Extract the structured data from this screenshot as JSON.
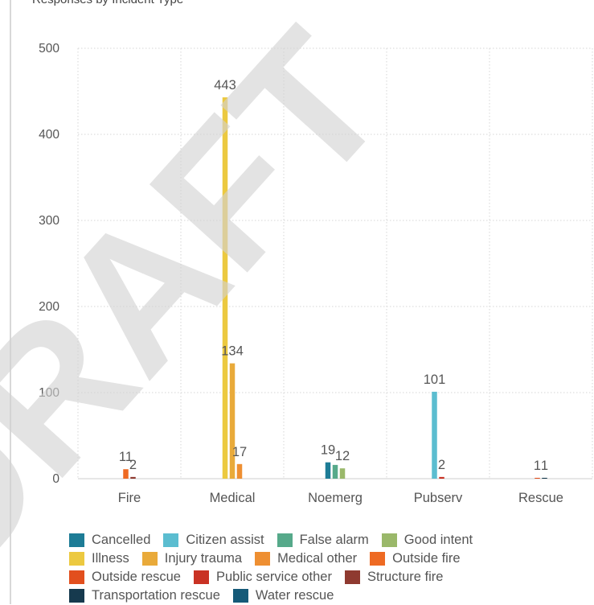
{
  "chart_data": {
    "type": "bar",
    "title": "Responses by Incident Type",
    "categories": [
      "Fire",
      "Medical",
      "Noemerg",
      "Pubserv",
      "Rescue"
    ],
    "ylim": [
      0,
      500
    ],
    "yticks": [
      0,
      100,
      200,
      300,
      400,
      500
    ],
    "grid": true,
    "legend_position": "bottom",
    "series": [
      {
        "name": "Cancelled",
        "color": "#1d7c96",
        "values": [
          null,
          null,
          19,
          null,
          null
        ]
      },
      {
        "name": "Citizen assist",
        "color": "#5bbdd0",
        "values": [
          null,
          null,
          null,
          101,
          null
        ]
      },
      {
        "name": "False alarm",
        "color": "#56a98a",
        "values": [
          null,
          null,
          16,
          null,
          null
        ]
      },
      {
        "name": "Good intent",
        "color": "#9ab86a",
        "values": [
          null,
          null,
          12,
          null,
          null
        ]
      },
      {
        "name": "Illness",
        "color": "#ecc940",
        "values": [
          null,
          443,
          null,
          null,
          null
        ]
      },
      {
        "name": "Injury trauma",
        "color": "#e9aa3a",
        "values": [
          null,
          134,
          null,
          null,
          null
        ]
      },
      {
        "name": "Medical other",
        "color": "#ee8f32",
        "values": [
          null,
          17,
          null,
          null,
          null
        ]
      },
      {
        "name": "Outside fire",
        "color": "#ee6a23",
        "values": [
          11,
          null,
          null,
          null,
          null
        ]
      },
      {
        "name": "Outside rescue",
        "color": "#e24f1e",
        "values": [
          null,
          null,
          null,
          null,
          1
        ]
      },
      {
        "name": "Public service other",
        "color": "#c93224",
        "values": [
          null,
          null,
          null,
          2,
          null
        ]
      },
      {
        "name": "Structure fire",
        "color": "#8f3a30",
        "values": [
          2,
          null,
          null,
          null,
          null
        ]
      },
      {
        "name": "Transportation rescue",
        "color": "#163a4e",
        "values": [
          null,
          null,
          null,
          null,
          1
        ]
      },
      {
        "name": "Water rescue",
        "color": "#155a78",
        "values": [
          null,
          null,
          null,
          null,
          null
        ]
      }
    ],
    "data_labels": [
      {
        "category": "Fire",
        "series": "Outside fire",
        "text": "11"
      },
      {
        "category": "Fire",
        "series": "Structure fire",
        "text": "2"
      },
      {
        "category": "Medical",
        "series": "Illness",
        "text": "443"
      },
      {
        "category": "Medical",
        "series": "Injury trauma",
        "text": "134"
      },
      {
        "category": "Medical",
        "series": "Medical other",
        "text": "17"
      },
      {
        "category": "Noemerg",
        "series": "Cancelled",
        "text": "19"
      },
      {
        "category": "Noemerg",
        "series": "Good intent",
        "text": "12"
      },
      {
        "category": "Pubserv",
        "series": "Citizen assist",
        "text": "101"
      },
      {
        "category": "Pubserv",
        "series": "Public service other",
        "text": "2"
      },
      {
        "category": "Rescue",
        "series": "Outside rescue",
        "text": "1"
      },
      {
        "category": "Rescue",
        "series": "Transportation rescue",
        "text": "1"
      }
    ]
  },
  "legend_rows": [
    [
      "Cancelled",
      "Citizen assist",
      "False alarm",
      "Good intent"
    ],
    [
      "Illness",
      "Injury trauma",
      "Medical other",
      "Outside fire"
    ],
    [
      "Outside rescue",
      "Public service other",
      "Structure fire"
    ],
    [
      "Transportation rescue",
      "Water rescue"
    ]
  ],
  "watermark": {
    "text": "DRAFT",
    "color": "#d2d2d2"
  }
}
